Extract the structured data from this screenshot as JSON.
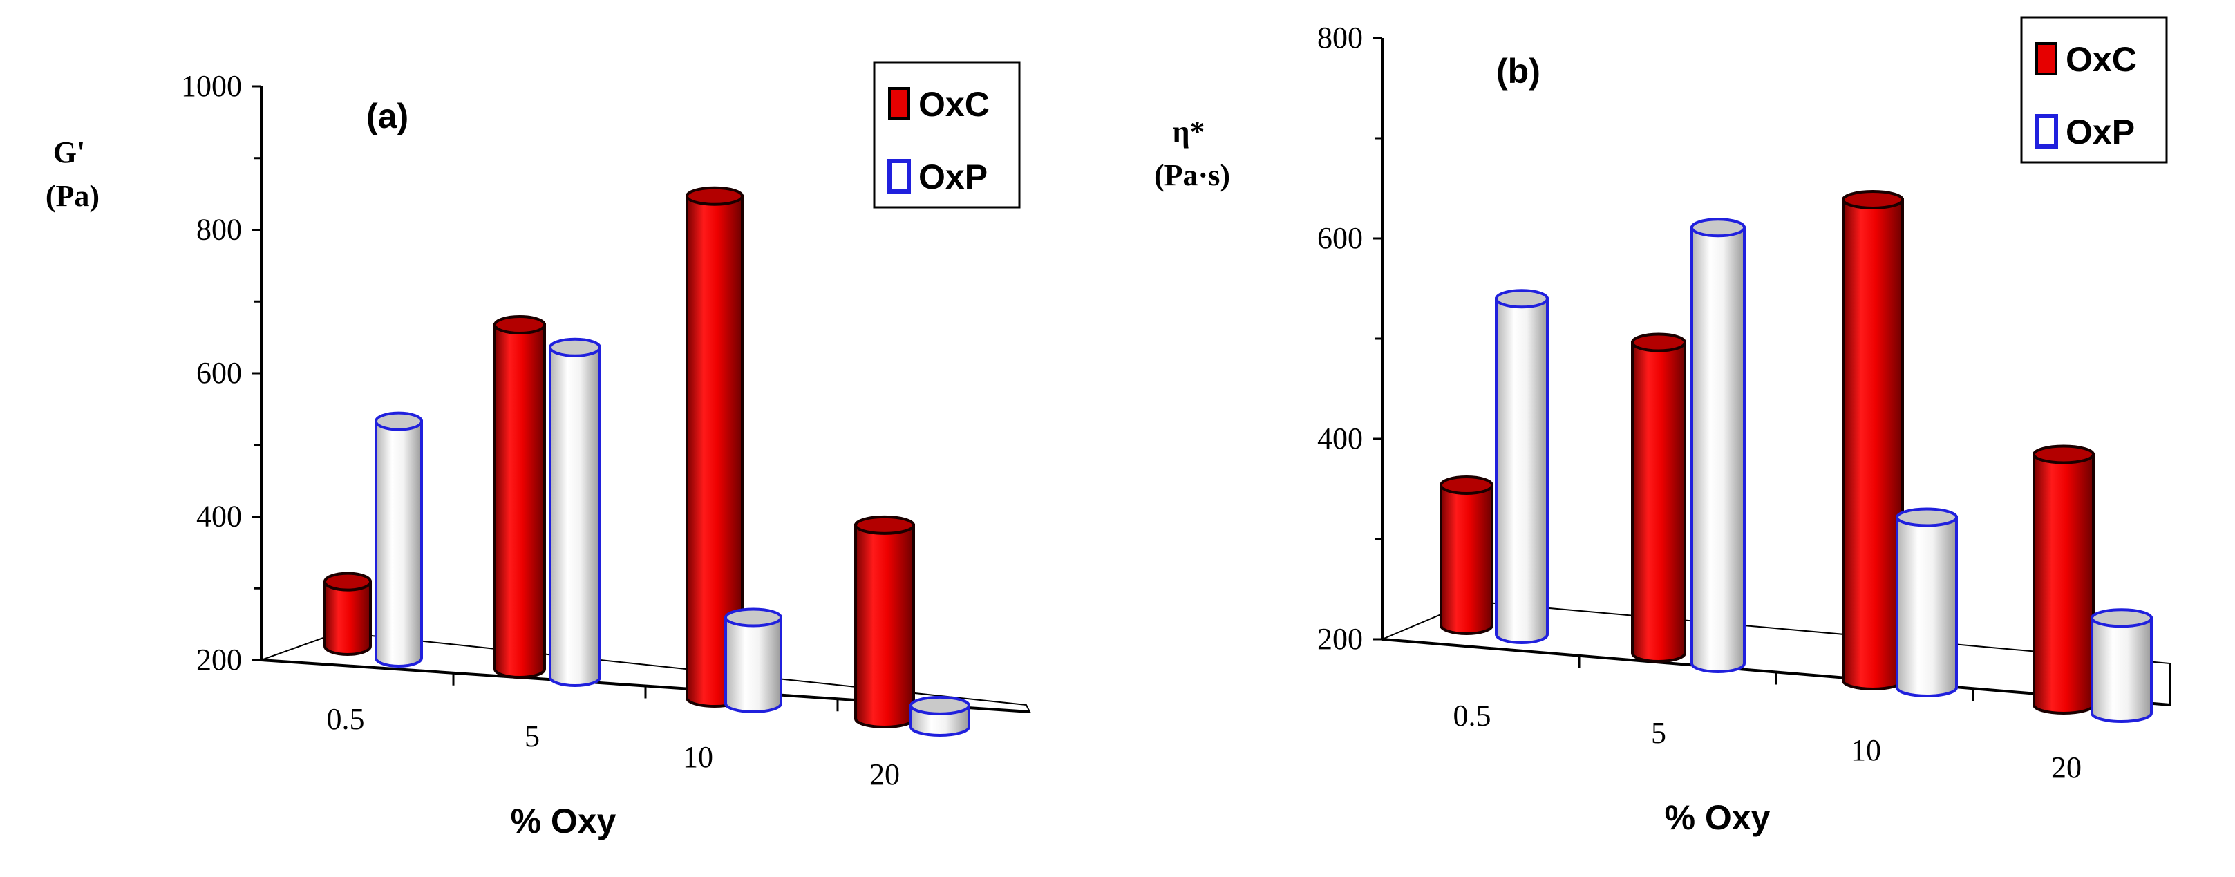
{
  "chart_data": [
    {
      "panel_label": "(a)",
      "type": "bar",
      "style": "3d-cylinder",
      "ylabel_line1": "G'",
      "ylabel_line2": "(Pa)",
      "xlabel": "% Oxy",
      "categories": [
        "0.5",
        "5",
        "10",
        "20"
      ],
      "y_ticks": [
        "200",
        "400",
        "600",
        "800",
        "1000"
      ],
      "ylim": [
        200,
        1000
      ],
      "series": [
        {
          "name": "OxC",
          "color": "#e60000",
          "values": [
            290,
            680,
            900,
            470
          ]
        },
        {
          "name": "OxP",
          "color": "#2020dd",
          "values": [
            530,
            660,
            320,
            230
          ]
        }
      ],
      "legend_position": "top-right"
    },
    {
      "panel_label": "(b)",
      "type": "bar",
      "style": "3d-cylinder",
      "ylabel_line1": "η*",
      "ylabel_line2": "(Pa·s)",
      "xlabel": "% Oxy",
      "categories": [
        "0.5",
        "5",
        "10",
        "20"
      ],
      "y_ticks": [
        "200",
        "400",
        "600",
        "800"
      ],
      "ylim": [
        200,
        800
      ],
      "series": [
        {
          "name": "OxC",
          "color": "#e60000",
          "values": [
            340,
            510,
            680,
            450
          ]
        },
        {
          "name": "OxP",
          "color": "#2020dd",
          "values": [
            535,
            635,
            370,
            295
          ]
        }
      ],
      "legend_position": "top-right"
    }
  ]
}
